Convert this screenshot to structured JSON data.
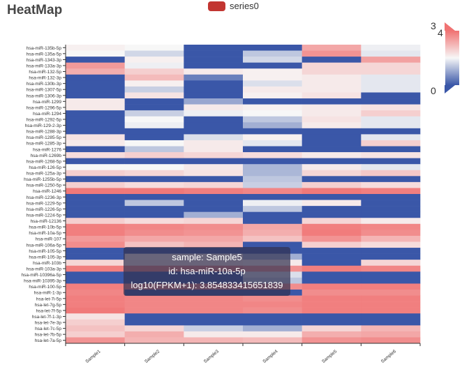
{
  "chart_data": {
    "type": "heatmap",
    "title": "HeatMap",
    "legend": {
      "series": "series0",
      "color": "#c23531"
    },
    "x": [
      "Sample1",
      "Sample2",
      "Sample3",
      "Sample4",
      "Sample5",
      "Sample6"
    ],
    "y": [
      "hsa-miR-135b-5p",
      "hsa-miR-135a-5p",
      "hsa-miR-1343-3p",
      "hsa-miR-133a-3p",
      "hsa-miR-132-5p",
      "hsa-miR-132-3p",
      "hsa-miR-130b-3p",
      "hsa-miR-1307-5p",
      "hsa-miR-1306-3p",
      "hsa-miR-1299",
      "hsa-miR-1296-5p",
      "hsa-miR-1294",
      "hsa-miR-1292-5p",
      "hsa-miR-129-2-3p",
      "hsa-miR-1288-3p",
      "hsa-miR-1285-5p",
      "hsa-miR-1285-3p",
      "hsa-miR-1276",
      "hsa-miR-1269b",
      "hsa-miR-1268-5p",
      "hsa-miR-126-5p",
      "hsa-miR-125a-3p",
      "hsa-miR-1255b-5p",
      "hsa-miR-1250-5p",
      "hsa-miR-1246",
      "hsa-miR-1236-3p",
      "hsa-miR-1229-5p",
      "hsa-miR-1226-5p",
      "hsa-miR-1224-5p",
      "hsa-miR-12136",
      "hsa-miR-10b-5p",
      "hsa-miR-10a-5p",
      "hsa-miR-107",
      "hsa-miR-106a-5p",
      "hsa-miR-105-5p",
      "hsa-miR-105-3p",
      "hsa-miR-103b",
      "hsa-miR-103a-3p",
      "hsa-miR-10396a-5p",
      "hsa-miR-10395-3p",
      "hsa-miR-100-5p",
      "hsa-miR-1-3p",
      "hsa-let-7i-5p",
      "hsa-let-7g-5p",
      "hsa-let-7f-5p",
      "hsa-let-7f-1-3p",
      "hsa-let-7e-3p",
      "hsa-let-7c-5p",
      "hsa-let-7b-5p",
      "hsa-let-7a-5p"
    ],
    "values": [
      [
        2.1,
        2.0,
        0,
        0,
        3.2,
        1.9
      ],
      [
        2.0,
        1.6,
        0,
        1.4,
        3.5,
        1.8
      ],
      [
        0,
        2.1,
        0,
        1.6,
        0,
        3.3
      ],
      [
        3.4,
        1.9,
        0,
        0,
        2.5,
        2.5
      ],
      [
        3.1,
        2.6,
        2.2,
        2.1,
        2.5,
        2.5
      ],
      [
        0,
        2.9,
        0.5,
        2.1,
        2.2,
        1.8
      ],
      [
        0,
        2.1,
        0,
        1.7,
        2.2,
        1.8
      ],
      [
        0,
        1.5,
        0,
        2.2,
        2.2,
        1.8
      ],
      [
        0,
        2.3,
        0,
        2.1,
        2.3,
        0
      ],
      [
        2.2,
        0,
        1.0,
        0,
        0,
        0
      ],
      [
        2.2,
        0,
        2.2,
        2.1,
        2.2,
        2.3
      ],
      [
        0,
        1.5,
        1.9,
        2.0,
        2.2,
        2.6
      ],
      [
        0,
        2.0,
        0,
        1.4,
        2.3,
        1.8
      ],
      [
        0,
        1.9,
        0,
        1.1,
        2.2,
        1.8
      ],
      [
        0,
        0,
        0,
        0,
        0,
        0
      ],
      [
        2.3,
        0,
        1.7,
        2.1,
        0,
        1.8
      ],
      [
        2.2,
        2.0,
        2.2,
        1.8,
        0,
        2.6
      ],
      [
        0,
        1.4,
        2.2,
        0,
        0,
        0
      ],
      [
        2.4,
        2.6,
        2.5,
        2.4,
        2.2,
        2.3
      ],
      [
        0,
        0,
        0,
        0,
        0,
        0
      ],
      [
        2.0,
        2.0,
        2.2,
        1.2,
        2.2,
        1.8
      ],
      [
        2.6,
        2.5,
        2.3,
        1.2,
        2.5,
        2.7
      ],
      [
        0,
        0,
        0,
        1.4,
        0,
        0
      ],
      [
        2.6,
        2.4,
        2.5,
        1.5,
        2.6,
        2.4
      ],
      [
        3.9,
        3.9,
        3.8,
        3.7,
        3.9,
        3.8
      ],
      [
        0,
        0,
        0,
        0,
        0,
        0
      ],
      [
        0,
        1.4,
        0,
        1.9,
        2.2,
        0
      ],
      [
        0,
        0,
        0,
        1.4,
        0,
        0
      ],
      [
        0,
        0,
        1.1,
        0,
        0,
        0
      ],
      [
        2.6,
        2.4,
        2.5,
        0,
        2.5,
        2.2
      ],
      [
        3.8,
        3.7,
        3.6,
        3.2,
        3.8,
        3.7
      ],
      [
        3.8,
        3.6,
        3.5,
        3.1,
        3.85,
        3.6
      ],
      [
        3.4,
        3.2,
        3.2,
        2.8,
        3.5,
        3.0
      ],
      [
        3.6,
        2.8,
        3.0,
        0,
        2.6,
        2.4
      ],
      [
        0,
        0,
        0,
        0,
        0,
        0
      ],
      [
        0,
        2.2,
        2.2,
        1.1,
        0,
        0
      ],
      [
        2.5,
        2.3,
        2.3,
        2.2,
        0,
        2.5
      ],
      [
        3.8,
        3.7,
        3.7,
        3.5,
        3.8,
        3.7
      ],
      [
        0,
        0,
        0,
        1.7,
        0,
        0
      ],
      [
        0,
        0,
        0,
        1.4,
        0,
        0
      ],
      [
        3.8,
        3.7,
        3.7,
        3.6,
        3.8,
        3.8
      ],
      [
        3.7,
        0,
        0,
        0,
        3.6,
        3.6
      ],
      [
        3.8,
        3.7,
        3.7,
        3.6,
        3.8,
        3.8
      ],
      [
        3.8,
        3.7,
        3.7,
        3.7,
        3.8,
        3.8
      ],
      [
        3.9,
        3.7,
        3.7,
        3.6,
        3.8,
        3.8
      ],
      [
        2.3,
        0,
        0,
        0,
        0,
        0
      ],
      [
        2.6,
        0,
        0,
        0,
        0,
        0
      ],
      [
        2.8,
        2.5,
        1.5,
        1.1,
        2.5,
        3.0
      ],
      [
        2.6,
        3.1,
        2.2,
        2.2,
        3.1,
        3.2
      ],
      [
        3.5,
        3.0,
        3.0,
        2.9,
        3.5,
        3.6
      ]
    ],
    "visualMap": {
      "min": 0,
      "max": 4,
      "low_color": "#3a57a8",
      "mid_color": "#f7f7f7",
      "high_color": "#f07272",
      "handle_high": "3",
      "max_label": "4",
      "min_label": "0"
    },
    "tooltip": {
      "sample": "sample: Sample5",
      "id": "id: hsa-miR-10a-5p",
      "value": "log10(FPKM+1): 3.854833415651839"
    }
  }
}
